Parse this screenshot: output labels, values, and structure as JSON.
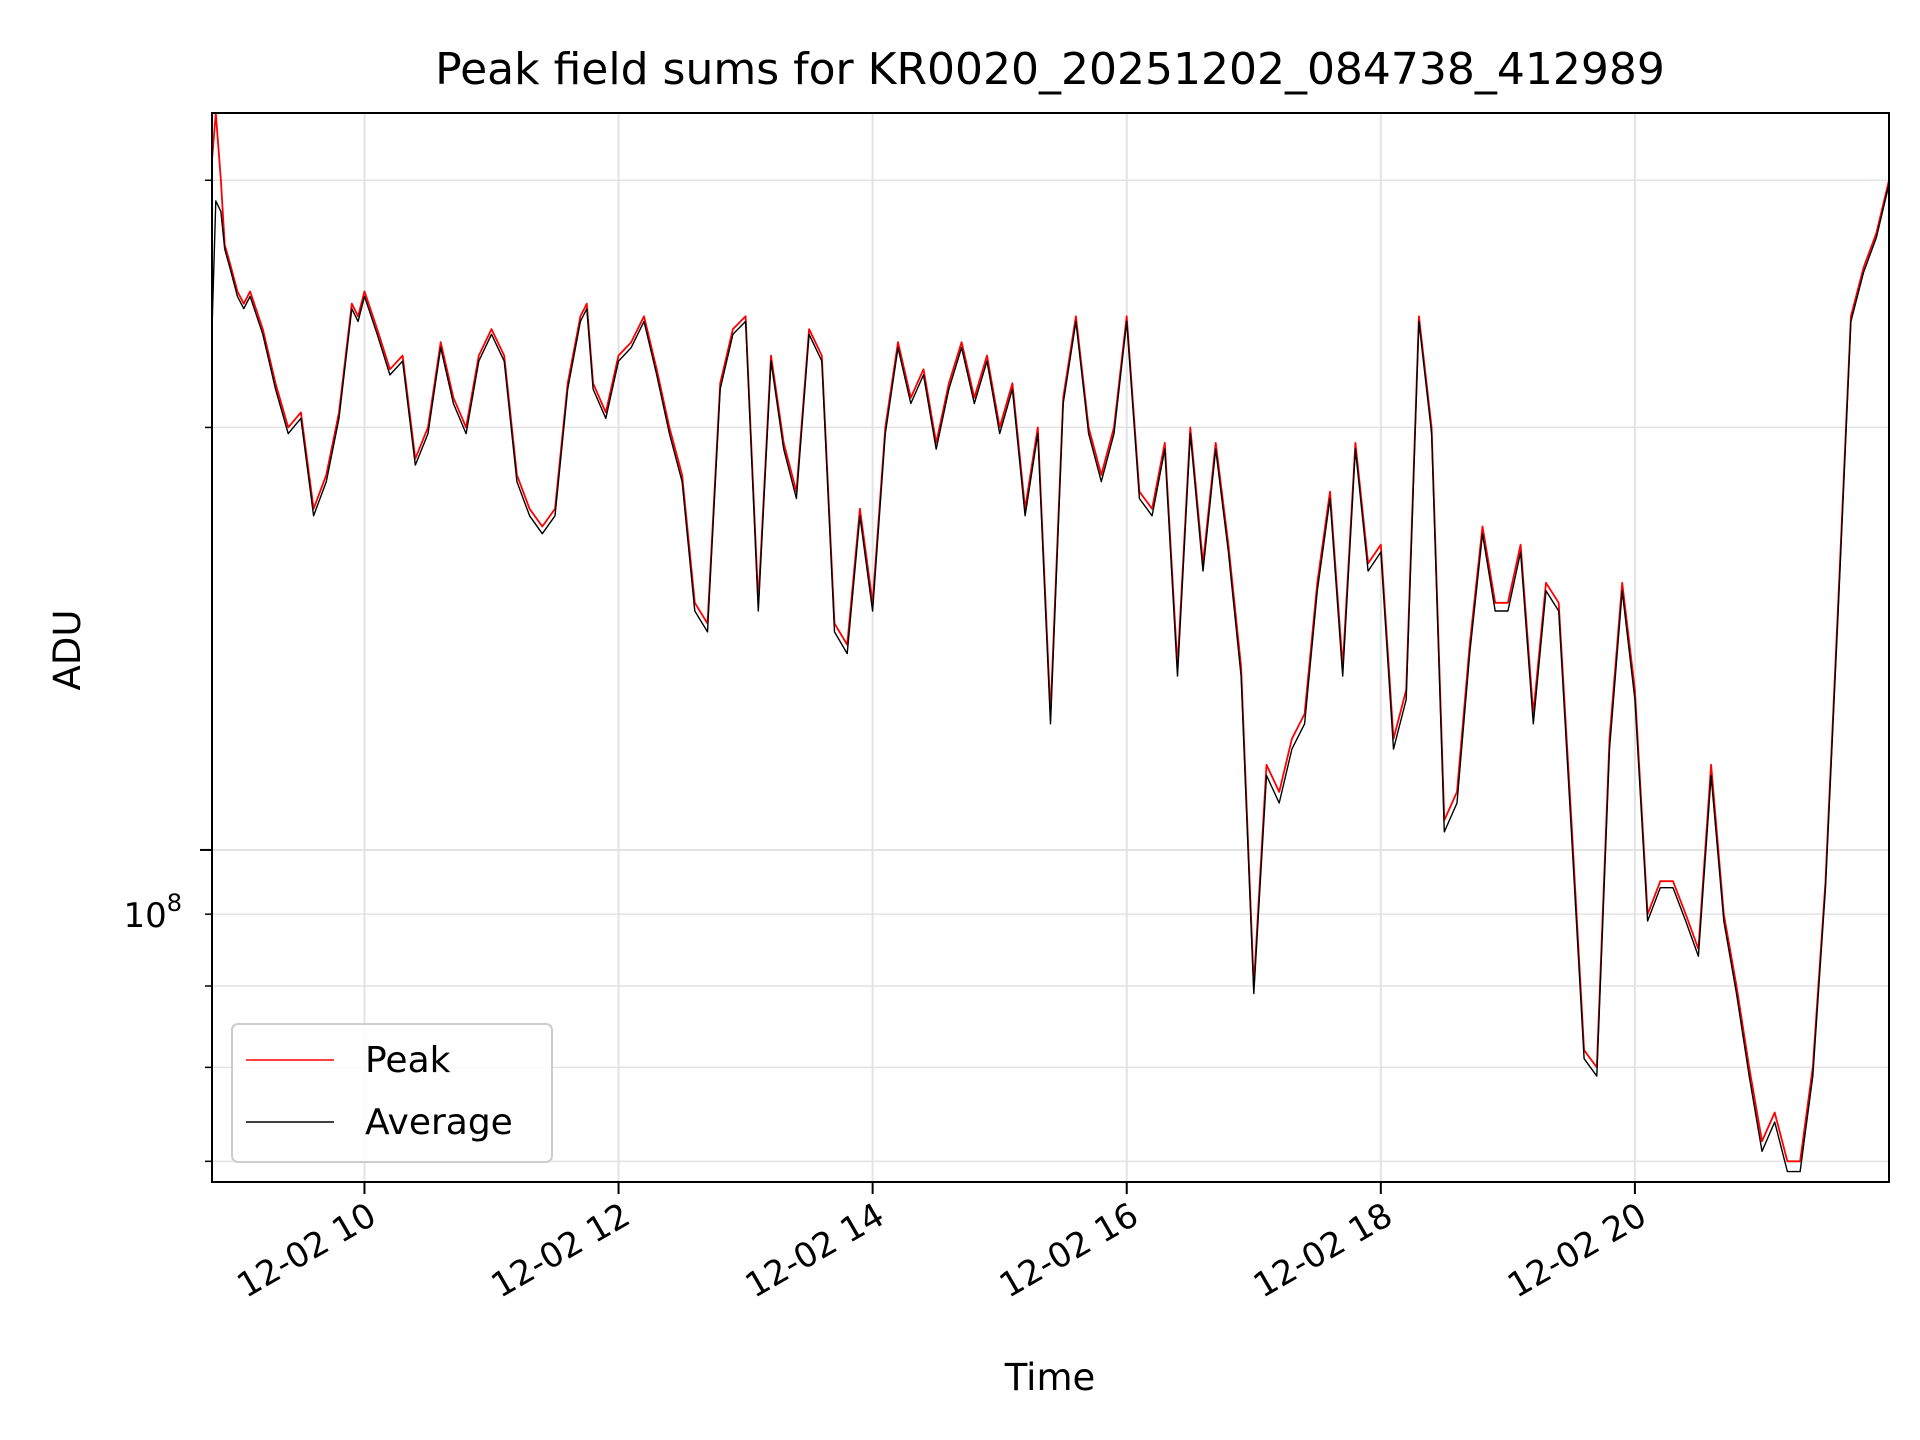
{
  "chart_data": {
    "type": "line",
    "title": "Peak field sums for KR0020_20251202_084738_412989",
    "xlabel": "Time",
    "ylabel": "ADU",
    "yscale": "log",
    "grid": true,
    "legend_position": "lower-left",
    "xlim": [
      8.8,
      22.0
    ],
    "ylim": [
      58000000,
      335000000
    ],
    "x_ticks": [
      {
        "value": 10,
        "label": "12-02 10"
      },
      {
        "value": 12,
        "label": "12-02 12"
      },
      {
        "value": 14,
        "label": "12-02 14"
      },
      {
        "value": 16,
        "label": "12-02 16"
      },
      {
        "value": 18,
        "label": "12-02 18"
      },
      {
        "value": 20,
        "label": "12-02 20"
      }
    ],
    "y_major_ticks": [
      {
        "value": 100000000,
        "label_base": "10",
        "label_exp": "8"
      }
    ],
    "y_minor_ticks": [
      60000000,
      70000000,
      80000000,
      90000000,
      200000000,
      300000000
    ],
    "series": [
      {
        "name": "Peak",
        "color": "#ff0000",
        "x": [
          8.8,
          8.83,
          8.87,
          8.9,
          8.95,
          9.0,
          9.05,
          9.1,
          9.2,
          9.3,
          9.4,
          9.5,
          9.6,
          9.7,
          9.8,
          9.9,
          9.95,
          10.0,
          10.1,
          10.2,
          10.3,
          10.4,
          10.5,
          10.6,
          10.7,
          10.8,
          10.9,
          11.0,
          11.1,
          11.2,
          11.3,
          11.4,
          11.5,
          11.6,
          11.7,
          11.75,
          11.8,
          11.9,
          12.0,
          12.1,
          12.2,
          12.3,
          12.4,
          12.5,
          12.6,
          12.7,
          12.8,
          12.9,
          13.0,
          13.1,
          13.2,
          13.3,
          13.4,
          13.5,
          13.6,
          13.7,
          13.8,
          13.9,
          14.0,
          14.1,
          14.2,
          14.3,
          14.4,
          14.5,
          14.6,
          14.7,
          14.8,
          14.9,
          15.0,
          15.1,
          15.2,
          15.3,
          15.4,
          15.5,
          15.6,
          15.7,
          15.8,
          15.9,
          16.0,
          16.1,
          16.2,
          16.3,
          16.4,
          16.5,
          16.6,
          16.7,
          16.8,
          16.9,
          17.0,
          17.1,
          17.2,
          17.3,
          17.4,
          17.5,
          17.6,
          17.7,
          17.8,
          17.9,
          18.0,
          18.1,
          18.2,
          18.3,
          18.4,
          18.5,
          18.6,
          18.7,
          18.8,
          18.9,
          19.0,
          19.1,
          19.2,
          19.3,
          19.4,
          19.5,
          19.6,
          19.7,
          19.8,
          19.9,
          20.0,
          20.1,
          20.2,
          20.3,
          20.4,
          20.5,
          20.6,
          20.7,
          20.8,
          20.9,
          21.0,
          21.1,
          21.2,
          21.3,
          21.4,
          21.5,
          21.6,
          21.7,
          21.8,
          21.9,
          22.0
        ],
        "y": [
          310000000,
          335000000,
          300000000,
          270000000,
          260000000,
          250000000,
          245000000,
          250000000,
          235000000,
          215000000,
          200000000,
          205000000,
          175000000,
          185000000,
          205000000,
          245000000,
          240000000,
          250000000,
          235000000,
          220000000,
          225000000,
          190000000,
          200000000,
          230000000,
          210000000,
          200000000,
          225000000,
          235000000,
          225000000,
          185000000,
          175000000,
          170000000,
          175000000,
          215000000,
          240000000,
          245000000,
          215000000,
          205000000,
          225000000,
          230000000,
          240000000,
          220000000,
          200000000,
          185000000,
          150000000,
          145000000,
          215000000,
          235000000,
          240000000,
          150000000,
          225000000,
          195000000,
          180000000,
          235000000,
          225000000,
          145000000,
          140000000,
          175000000,
          150000000,
          200000000,
          230000000,
          210000000,
          220000000,
          195000000,
          215000000,
          230000000,
          210000000,
          225000000,
          200000000,
          215000000,
          175000000,
          200000000,
          125000000,
          210000000,
          240000000,
          200000000,
          185000000,
          200000000,
          240000000,
          180000000,
          175000000,
          195000000,
          135000000,
          200000000,
          160000000,
          195000000,
          165000000,
          135000000,
          80000000,
          115000000,
          110000000,
          120000000,
          125000000,
          155000000,
          180000000,
          135000000,
          195000000,
          160000000,
          165000000,
          120000000,
          130000000,
          240000000,
          200000000,
          105000000,
          110000000,
          140000000,
          170000000,
          150000000,
          150000000,
          165000000,
          125000000,
          155000000,
          150000000,
          105000000,
          72000000,
          70000000,
          120000000,
          155000000,
          130000000,
          90000000,
          95000000,
          95000000,
          90000000,
          85000000,
          115000000,
          90000000,
          80000000,
          70000000,
          62000000,
          65000000,
          60000000,
          60000000,
          70000000,
          95000000,
          150000000,
          240000000,
          260000000,
          275000000,
          300000000
        ]
      },
      {
        "name": "Average",
        "color": "#000000",
        "x": [
          8.8,
          8.83,
          8.87,
          8.9,
          8.95,
          9.0,
          9.05,
          9.1,
          9.2,
          9.3,
          9.4,
          9.5,
          9.6,
          9.7,
          9.8,
          9.9,
          9.95,
          10.0,
          10.1,
          10.2,
          10.3,
          10.4,
          10.5,
          10.6,
          10.7,
          10.8,
          10.9,
          11.0,
          11.1,
          11.2,
          11.3,
          11.4,
          11.5,
          11.6,
          11.7,
          11.75,
          11.8,
          11.9,
          12.0,
          12.1,
          12.2,
          12.3,
          12.4,
          12.5,
          12.6,
          12.7,
          12.8,
          12.9,
          13.0,
          13.1,
          13.2,
          13.3,
          13.4,
          13.5,
          13.6,
          13.7,
          13.8,
          13.9,
          14.0,
          14.1,
          14.2,
          14.3,
          14.4,
          14.5,
          14.6,
          14.7,
          14.8,
          14.9,
          15.0,
          15.1,
          15.2,
          15.3,
          15.4,
          15.5,
          15.6,
          15.7,
          15.8,
          15.9,
          16.0,
          16.1,
          16.2,
          16.3,
          16.4,
          16.5,
          16.6,
          16.7,
          16.8,
          16.9,
          17.0,
          17.1,
          17.2,
          17.3,
          17.4,
          17.5,
          17.6,
          17.7,
          17.8,
          17.9,
          18.0,
          18.1,
          18.2,
          18.3,
          18.4,
          18.5,
          18.6,
          18.7,
          18.8,
          18.9,
          19.0,
          19.1,
          19.2,
          19.3,
          19.4,
          19.5,
          19.6,
          19.7,
          19.8,
          19.9,
          20.0,
          20.1,
          20.2,
          20.3,
          20.4,
          20.5,
          20.6,
          20.7,
          20.8,
          20.9,
          21.0,
          21.1,
          21.2,
          21.3,
          21.4,
          21.5,
          21.6,
          21.7,
          21.8,
          21.9,
          22.0
        ],
        "y": [
          235000000,
          290000000,
          285000000,
          268000000,
          258000000,
          248000000,
          243000000,
          248000000,
          233000000,
          213000000,
          198000000,
          203000000,
          173000000,
          183000000,
          203000000,
          243000000,
          238000000,
          248000000,
          233000000,
          218000000,
          223000000,
          188000000,
          198000000,
          228000000,
          208000000,
          198000000,
          223000000,
          233000000,
          223000000,
          183000000,
          173000000,
          168000000,
          173000000,
          213000000,
          238000000,
          243000000,
          213000000,
          203000000,
          223000000,
          228000000,
          238000000,
          218000000,
          198000000,
          183000000,
          148000000,
          143000000,
          213000000,
          233000000,
          238000000,
          148000000,
          223000000,
          193000000,
          178000000,
          233000000,
          223000000,
          143000000,
          138000000,
          173000000,
          148000000,
          198000000,
          228000000,
          208000000,
          218000000,
          193000000,
          213000000,
          228000000,
          208000000,
          223000000,
          198000000,
          213000000,
          173000000,
          198000000,
          123000000,
          208000000,
          238000000,
          198000000,
          183000000,
          198000000,
          238000000,
          178000000,
          173000000,
          193000000,
          133000000,
          198000000,
          158000000,
          193000000,
          163000000,
          133000000,
          79000000,
          113000000,
          108000000,
          118000000,
          123000000,
          153000000,
          178000000,
          133000000,
          193000000,
          158000000,
          163000000,
          118000000,
          128000000,
          238000000,
          198000000,
          103000000,
          108000000,
          138000000,
          168000000,
          148000000,
          148000000,
          163000000,
          123000000,
          153000000,
          148000000,
          103000000,
          71000000,
          69000000,
          118000000,
          153000000,
          128000000,
          89000000,
          94000000,
          94000000,
          89000000,
          84000000,
          113000000,
          89000000,
          79000000,
          69000000,
          61000000,
          64000000,
          59000000,
          59000000,
          69000000,
          94000000,
          148000000,
          238000000,
          258000000,
          273000000,
          298000000
        ]
      }
    ]
  }
}
